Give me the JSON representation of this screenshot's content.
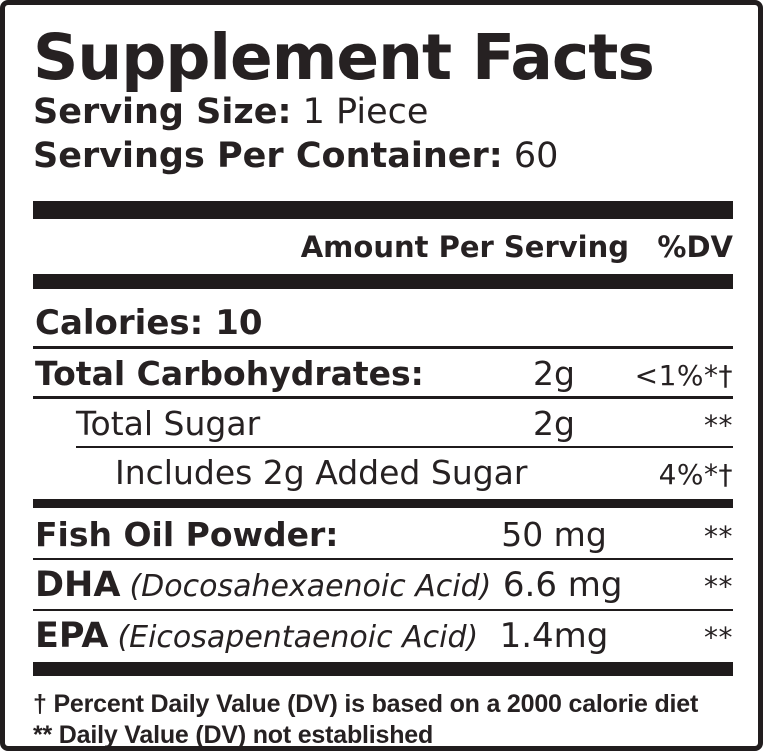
{
  "colors": {
    "ink": "#262122",
    "rule": "#1f1b1c",
    "background": "#ffffff"
  },
  "panel": {
    "title": "Supplement Facts",
    "serving_size": {
      "label": "Serving Size:",
      "value": "1 Piece"
    },
    "servings_per_container": {
      "label": "Servings Per Container:",
      "value": "60"
    },
    "columns": {
      "amount_header": "Amount Per Serving",
      "dv_header": "%DV"
    },
    "calories": {
      "label": "Calories:",
      "value": "10"
    },
    "rows": [
      {
        "name": "Total Carbohydrates:",
        "amount": "2g",
        "dv": "<1%*†"
      },
      {
        "name": "Total Sugar",
        "amount": "2g",
        "dv": "**"
      },
      {
        "name": "Includes 2g Added Sugar",
        "amount": "",
        "dv": "4%*†"
      },
      {
        "name": "Fish Oil Powder:",
        "amount": "50 mg",
        "dv": "**"
      },
      {
        "name": "DHA",
        "detail": "(Docosahexaenoic Acid)",
        "amount": "6.6 mg",
        "dv": "**"
      },
      {
        "name": "EPA",
        "detail": "(Eicosapentaenoic Acid)",
        "amount": "1.4mg",
        "dv": "**"
      }
    ],
    "footnotes": [
      "† Percent Daily Value (DV) is based on a 2000 calorie diet",
      "** Daily Value (DV) not established"
    ]
  }
}
